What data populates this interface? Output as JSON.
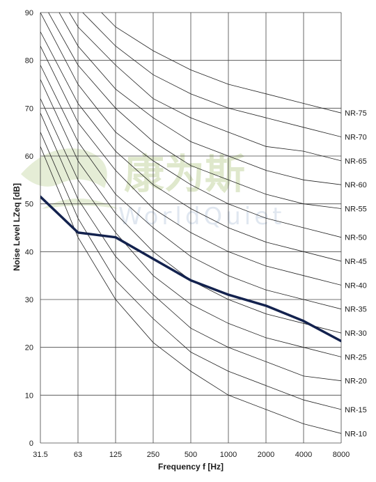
{
  "chart_data": {
    "type": "line",
    "title": "",
    "xlabel": "Frequency f [Hz]",
    "ylabel": "Noise Level LZeq [dB]",
    "x_scale": "categorical-octave",
    "categories": [
      "31.5",
      "63",
      "125",
      "250",
      "500",
      "1000",
      "2000",
      "4000",
      "8000"
    ],
    "ylim": [
      0,
      90
    ],
    "y_ticks": [
      0,
      10,
      20,
      30,
      40,
      50,
      60,
      70,
      80,
      90
    ],
    "grid": true,
    "series": [
      {
        "name": "NR-10",
        "values": [
          62,
          43,
          30,
          21,
          15,
          10,
          7,
          4,
          2
        ],
        "role": "reference"
      },
      {
        "name": "NR-15",
        "values": [
          65,
          47,
          34,
          26,
          19,
          15,
          12,
          9,
          7
        ],
        "role": "reference"
      },
      {
        "name": "NR-20",
        "values": [
          69,
          51,
          39,
          31,
          24,
          20,
          17,
          14,
          13
        ],
        "role": "reference"
      },
      {
        "name": "NR-25",
        "values": [
          72,
          55,
          44,
          35,
          29,
          25,
          22,
          20,
          18
        ],
        "role": "reference"
      },
      {
        "name": "NR-30",
        "values": [
          76,
          59,
          48,
          40,
          34,
          30,
          27,
          25,
          23
        ],
        "role": "reference"
      },
      {
        "name": "NR-35",
        "values": [
          79,
          63,
          52,
          45,
          39,
          35,
          32,
          30,
          28
        ],
        "role": "reference"
      },
      {
        "name": "NR-40",
        "values": [
          83,
          67,
          57,
          49,
          44,
          40,
          37,
          35,
          33
        ],
        "role": "reference"
      },
      {
        "name": "NR-45",
        "values": [
          86,
          71,
          61,
          54,
          49,
          45,
          42,
          40,
          38
        ],
        "role": "reference"
      },
      {
        "name": "NR-50",
        "values": [
          90,
          75,
          65,
          59,
          54,
          50,
          47,
          45,
          43
        ],
        "role": "reference"
      },
      {
        "name": "NR-55",
        "values": [
          93,
          79,
          70,
          63,
          58,
          55,
          52,
          50,
          49
        ],
        "role": "reference"
      },
      {
        "name": "NR-60",
        "values": [
          97,
          83,
          74,
          68,
          63,
          60,
          57,
          55,
          54
        ],
        "role": "reference"
      },
      {
        "name": "NR-65",
        "values": [
          100,
          87,
          79,
          72,
          68,
          65,
          62,
          61,
          59
        ],
        "role": "reference"
      },
      {
        "name": "NR-70",
        "values": [
          104,
          91,
          83,
          77,
          73,
          70,
          68,
          66,
          64
        ],
        "role": "reference"
      },
      {
        "name": "NR-75",
        "values": [
          107,
          95,
          87,
          82,
          78,
          75,
          73,
          71,
          69
        ],
        "role": "reference"
      },
      {
        "values": [
          51.5,
          44,
          43,
          38.5,
          34,
          31,
          28.7,
          25.5,
          21.3
        ],
        "role": "measured"
      }
    ],
    "colors": {
      "measured": "#13224e",
      "reference": "#222222",
      "grid": "#444444",
      "watermark": "#c6d7a3"
    }
  },
  "watermark": {
    "text_cn": "康为斯",
    "text_en": "WorldQuiet"
  }
}
